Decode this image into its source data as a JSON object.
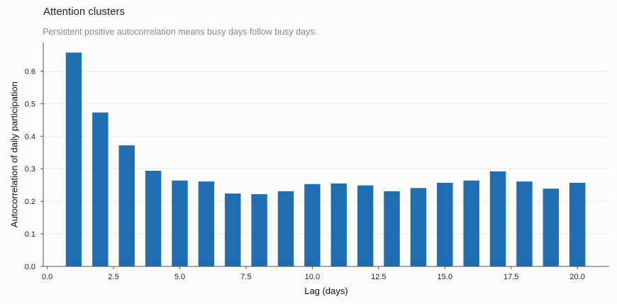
{
  "header": {
    "title": "Attention clusters",
    "subtitle": "Persistent positive autocorrelation means busy days follow busy days."
  },
  "colors": {
    "bar": "#1f6eb3",
    "grid": "#e8ecec",
    "axis": "#555555",
    "background": "#fcfcfa"
  },
  "chart_data": {
    "type": "bar",
    "title": "Attention clusters",
    "subtitle": "Persistent positive autocorrelation means busy days follow busy days.",
    "xlabel": "Lag (days)",
    "ylabel": "Autocorrelation of daily participation",
    "x": [
      1,
      2,
      3,
      4,
      5,
      6,
      7,
      8,
      9,
      10,
      11,
      12,
      13,
      14,
      15,
      16,
      17,
      18,
      19,
      20
    ],
    "values": [
      0.657,
      0.473,
      0.372,
      0.294,
      0.264,
      0.261,
      0.224,
      0.222,
      0.231,
      0.253,
      0.255,
      0.249,
      0.231,
      0.241,
      0.257,
      0.264,
      0.292,
      0.261,
      0.239,
      0.257
    ],
    "xlim": [
      -0.15,
      21.2
    ],
    "ylim": [
      0,
      0.688
    ],
    "xticks": [
      0.0,
      2.5,
      5.0,
      7.5,
      10.0,
      12.5,
      15.0,
      17.5,
      20.0
    ],
    "xtick_labels": [
      "0.0",
      "2.5",
      "5.0",
      "7.5",
      "10.0",
      "12.5",
      "15.0",
      "17.5",
      "20.0"
    ],
    "yticks": [
      0.0,
      0.1,
      0.2,
      0.3,
      0.4,
      0.5,
      0.6
    ],
    "ytick_labels": [
      "0.0",
      "0.1",
      "0.2",
      "0.3",
      "0.4",
      "0.5",
      "0.6"
    ],
    "bar_width": 0.6,
    "grid": "horizontal",
    "legend": "none"
  }
}
